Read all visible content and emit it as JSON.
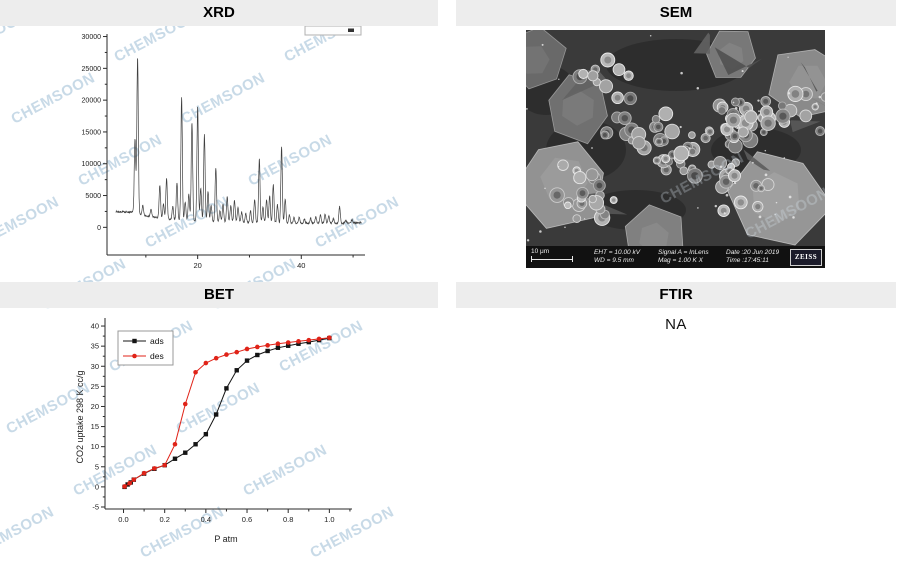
{
  "watermark": {
    "text": "CHEMSOON",
    "color": "#c3d6e5"
  },
  "panels": {
    "xrd": {
      "title": "XRD"
    },
    "sem": {
      "title": "SEM",
      "info_bar": {
        "scale_label": "10 μm",
        "eht": "EHT = 10.00 kV",
        "wd": "WD =  9.5 mm",
        "signal": "Signal A = InLens",
        "mag": "Mag =   1.00 K X",
        "date": "Date :20 Jun 2019",
        "time": "Time :17:45:11",
        "brand": "ZEISS"
      }
    },
    "bet": {
      "title": "BET"
    },
    "ftir": {
      "title": "FTIR",
      "body": "NA"
    }
  },
  "chart_data": [
    {
      "id": "xrd",
      "type": "line",
      "title": "XRD",
      "xlabel": "",
      "ylabel": "",
      "xlim": [
        2.5,
        52.3
      ],
      "ylim": [
        -4350,
        30400
      ],
      "x_ticks_labeled": [
        20,
        40
      ],
      "x_ticks_minor": [
        10,
        30,
        50
      ],
      "y_ticks": [
        0,
        5000,
        10000,
        15000,
        20000,
        25000,
        30000
      ],
      "y_minor_step": 2500,
      "grid": false,
      "line_color": "#3f3f3f",
      "baseline_points": [
        [
          2.5,
          2500
        ],
        [
          6.5,
          2400
        ],
        [
          7.5,
          2350
        ],
        [
          9,
          1950
        ],
        [
          11,
          1700
        ],
        [
          13,
          1350
        ],
        [
          16,
          1150
        ],
        [
          19,
          1000
        ],
        [
          22,
          900
        ],
        [
          26,
          800
        ],
        [
          31,
          700
        ],
        [
          36,
          650
        ],
        [
          40,
          600
        ],
        [
          44,
          620
        ],
        [
          48,
          600
        ],
        [
          52.3,
          800
        ]
      ],
      "peaks_2theta_intensity": [
        [
          7.9,
          13800
        ],
        [
          8.4,
          26800
        ],
        [
          9.4,
          3400
        ],
        [
          11.0,
          2800
        ],
        [
          12.7,
          6600
        ],
        [
          13.4,
          3600
        ],
        [
          14.0,
          7700
        ],
        [
          15.2,
          3200
        ],
        [
          16.0,
          7100
        ],
        [
          16.9,
          20400
        ],
        [
          17.6,
          4000
        ],
        [
          18.3,
          5200
        ],
        [
          18.9,
          16400
        ],
        [
          20.0,
          18900
        ],
        [
          20.6,
          6200
        ],
        [
          21.3,
          14600
        ],
        [
          22.0,
          5600
        ],
        [
          22.6,
          3400
        ],
        [
          23.5,
          9400
        ],
        [
          24.3,
          2600
        ],
        [
          24.9,
          3600
        ],
        [
          25.7,
          4800
        ],
        [
          26.4,
          3400
        ],
        [
          27.1,
          4300
        ],
        [
          27.8,
          3100
        ],
        [
          28.5,
          2400
        ],
        [
          29.3,
          2200
        ],
        [
          30.2,
          2600
        ],
        [
          31.0,
          4400
        ],
        [
          31.9,
          10800
        ],
        [
          32.6,
          3200
        ],
        [
          33.3,
          4400
        ],
        [
          33.9,
          4900
        ],
        [
          34.6,
          6700
        ],
        [
          35.4,
          3600
        ],
        [
          36.2,
          12700
        ],
        [
          36.9,
          4400
        ],
        [
          37.7,
          2000
        ],
        [
          38.6,
          1500
        ],
        [
          39.6,
          1600
        ],
        [
          40.6,
          1300
        ],
        [
          41.8,
          1400
        ],
        [
          42.8,
          1600
        ],
        [
          43.7,
          1900
        ],
        [
          44.6,
          2100
        ],
        [
          45.3,
          1800
        ],
        [
          46.2,
          1400
        ],
        [
          47.4,
          3300
        ],
        [
          48.6,
          1100
        ],
        [
          49.8,
          1200
        ]
      ]
    },
    {
      "id": "bet",
      "type": "line",
      "title": "BET",
      "xlabel": "P atm",
      "ylabel": "CO2 uptake  298 K  cc/g",
      "xlim": [
        -0.09,
        1.11
      ],
      "ylim": [
        -5.5,
        42
      ],
      "x_ticks": [
        0.0,
        0.2,
        0.4,
        0.6,
        0.8,
        1.0
      ],
      "x_ticks_minor": [
        0.1,
        0.3,
        0.5,
        0.7,
        0.9,
        1.1
      ],
      "y_ticks": [
        -5,
        0,
        5,
        10,
        15,
        20,
        25,
        30,
        35,
        40
      ],
      "grid": false,
      "legend_position": "top-left",
      "series": [
        {
          "name": "ads",
          "color": "#141414",
          "marker": "square",
          "x": [
            0.005,
            0.02,
            0.035,
            0.05,
            0.1,
            0.15,
            0.2,
            0.25,
            0.3,
            0.35,
            0.4,
            0.45,
            0.5,
            0.55,
            0.6,
            0.65,
            0.7,
            0.75,
            0.8,
            0.85,
            0.9,
            0.95,
            1.0
          ],
          "y": [
            0,
            0.6,
            1.1,
            1.8,
            3.3,
            4.5,
            5.4,
            7.0,
            8.5,
            10.6,
            13.1,
            18.0,
            24.5,
            29.0,
            31.4,
            32.8,
            33.8,
            34.6,
            35.1,
            35.6,
            36.0,
            36.5,
            37.0
          ]
        },
        {
          "name": "des",
          "color": "#e02318",
          "marker": "circle",
          "x": [
            0.005,
            0.03,
            0.05,
            0.1,
            0.15,
            0.2,
            0.25,
            0.3,
            0.35,
            0.4,
            0.45,
            0.5,
            0.55,
            0.6,
            0.65,
            0.7,
            0.75,
            0.8,
            0.85,
            0.9,
            0.95,
            1.0
          ],
          "y": [
            0.1,
            0.9,
            1.8,
            3.4,
            4.6,
            5.4,
            10.6,
            20.6,
            28.5,
            30.8,
            32.0,
            32.9,
            33.5,
            34.3,
            34.8,
            35.2,
            35.6,
            35.9,
            36.2,
            36.5,
            36.8,
            37.1
          ]
        }
      ]
    }
  ]
}
